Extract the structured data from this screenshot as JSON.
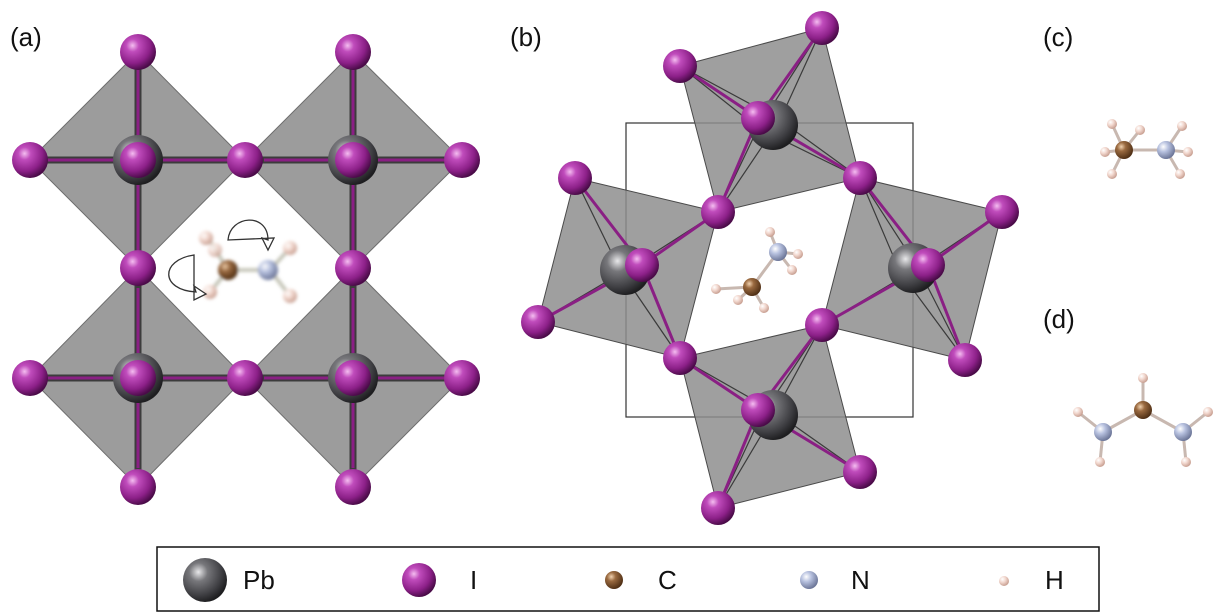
{
  "panels": {
    "a": "(a)",
    "b": "(b)",
    "c": "(c)",
    "d": "(d)"
  },
  "legend": [
    {
      "symbol": "Pb",
      "color": "#5a5a5e",
      "icon": "lead-atom-icon"
    },
    {
      "symbol": "I",
      "color": "#9a2a96",
      "icon": "iodine-atom-icon"
    },
    {
      "symbol": "C",
      "color": "#8a5a35",
      "icon": "carbon-atom-icon"
    },
    {
      "symbol": "N",
      "color": "#aebad8",
      "icon": "nitrogen-atom-icon"
    },
    {
      "symbol": "H",
      "color": "#f3dcd4",
      "icon": "hydrogen-atom-icon"
    }
  ],
  "colors": {
    "octahedron_fill": "#8e8e8e",
    "bond_dark": "#3c3c3c",
    "bond_purple": "#8a1f84",
    "cell_outline": "#333333"
  }
}
